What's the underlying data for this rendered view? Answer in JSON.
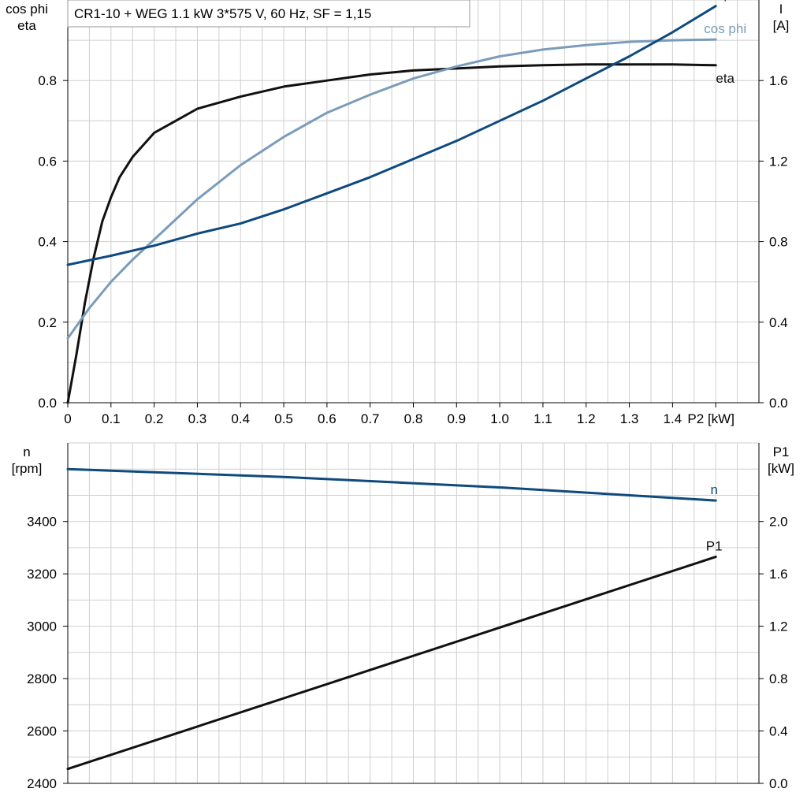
{
  "title": "CR1-10 + WEG   1.1 kW   3*575 V, 60 Hz, SF = 1,15",
  "colors": {
    "eta": "#111111",
    "cos_phi": "#7a9cba",
    "current": "#0e4a7e",
    "speed": "#0e4a7e",
    "p1": "#111111"
  },
  "chart_data": [
    {
      "type": "line",
      "x_label": "P2 [kW]",
      "x_ticks": [
        "0",
        "0.1",
        "0.2",
        "0.3",
        "0.4",
        "0.5",
        "0.6",
        "0.7",
        "0.8",
        "0.9",
        "1.0",
        "1.1",
        "1.2",
        "1.3",
        "1.4",
        "P2 [kW]"
      ],
      "xlim": [
        0,
        1.6
      ],
      "left_axis": {
        "label_lines": [
          "cos phi",
          "eta"
        ],
        "ylim": [
          0,
          1.0
        ],
        "ticks": [
          "0.0",
          "0.2",
          "0.4",
          "0.6",
          "0.8"
        ]
      },
      "right_axis": {
        "label_lines": [
          "I",
          "[A]"
        ],
        "ylim": [
          0,
          2.0
        ],
        "ticks": [
          "0.0",
          "0.4",
          "0.8",
          "1.2",
          "1.6"
        ]
      },
      "grid": true,
      "series": [
        {
          "name": "eta",
          "axis": "left",
          "x": [
            0,
            0.02,
            0.04,
            0.06,
            0.08,
            0.1,
            0.12,
            0.15,
            0.2,
            0.25,
            0.3,
            0.4,
            0.5,
            0.6,
            0.7,
            0.8,
            0.9,
            1.0,
            1.1,
            1.2,
            1.3,
            1.4,
            1.5
          ],
          "y": [
            0,
            0.12,
            0.25,
            0.36,
            0.45,
            0.51,
            0.56,
            0.61,
            0.67,
            0.7,
            0.73,
            0.76,
            0.785,
            0.8,
            0.815,
            0.825,
            0.83,
            0.835,
            0.838,
            0.84,
            0.84,
            0.84,
            0.838
          ]
        },
        {
          "name": "cos phi",
          "axis": "left",
          "x": [
            0,
            0.05,
            0.1,
            0.15,
            0.2,
            0.3,
            0.4,
            0.5,
            0.6,
            0.7,
            0.8,
            0.9,
            1.0,
            1.1,
            1.2,
            1.3,
            1.4,
            1.5
          ],
          "y": [
            0.16,
            0.235,
            0.3,
            0.355,
            0.405,
            0.505,
            0.59,
            0.66,
            0.72,
            0.765,
            0.805,
            0.835,
            0.86,
            0.877,
            0.888,
            0.896,
            0.9,
            0.902
          ]
        },
        {
          "name": "I",
          "axis": "right",
          "x": [
            0,
            0.1,
            0.2,
            0.3,
            0.4,
            0.5,
            0.6,
            0.7,
            0.8,
            0.9,
            1.0,
            1.1,
            1.2,
            1.3,
            1.4,
            1.5
          ],
          "y": [
            0.685,
            0.73,
            0.78,
            0.84,
            0.89,
            0.96,
            1.04,
            1.12,
            1.21,
            1.3,
            1.4,
            1.5,
            1.61,
            1.72,
            1.84,
            1.97
          ]
        }
      ]
    },
    {
      "type": "line",
      "x_label": "P2 [kW]",
      "xlim": [
        0,
        1.6
      ],
      "left_axis": {
        "label_lines": [
          "n",
          "[rpm]"
        ],
        "ylim": [
          2400,
          3700
        ],
        "ticks": [
          "2400",
          "2600",
          "2800",
          "3000",
          "3200",
          "3400"
        ]
      },
      "right_axis": {
        "label_lines": [
          "P1",
          "[kW]"
        ],
        "ylim": [
          0,
          2.6
        ],
        "ticks": [
          "0.0",
          "0.4",
          "0.8",
          "1.2",
          "1.6",
          "2.0"
        ]
      },
      "grid": true,
      "series": [
        {
          "name": "n",
          "axis": "left",
          "x": [
            0,
            0.5,
            1.0,
            1.5
          ],
          "y": [
            3600,
            3570,
            3530,
            3480
          ]
        },
        {
          "name": "P1",
          "axis": "right",
          "x": [
            0,
            0.5,
            1.0,
            1.5
          ],
          "y": [
            0.11,
            0.65,
            1.19,
            1.73
          ]
        }
      ]
    }
  ]
}
